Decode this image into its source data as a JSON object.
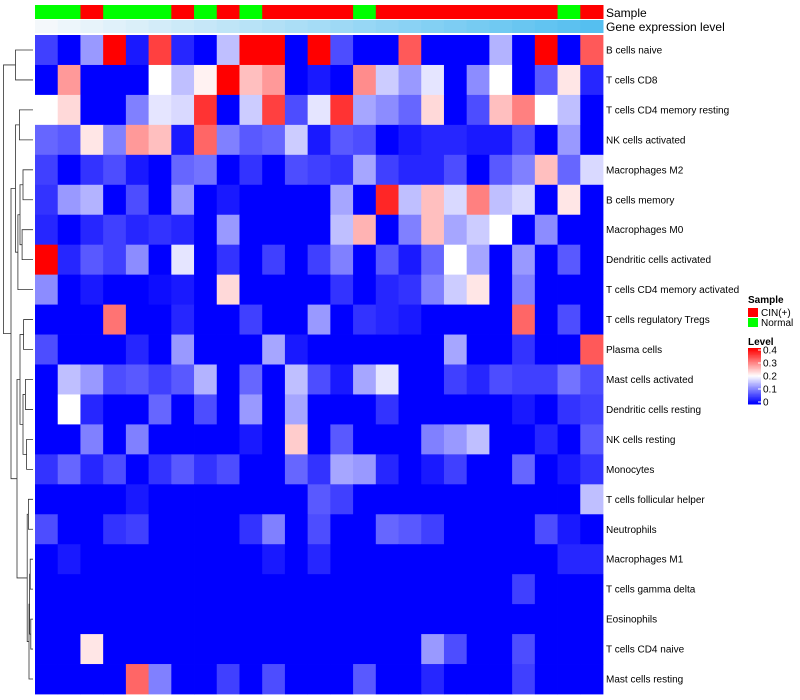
{
  "chart_data": {
    "type": "heatmap",
    "title": "",
    "annotation_rows": [
      {
        "label": "Sample",
        "values": [
          "Normal",
          "Normal",
          "CIN(+)",
          "Normal",
          "Normal",
          "Normal",
          "CIN(+)",
          "Normal",
          "CIN(+)",
          "Normal",
          "CIN(+)",
          "CIN(+)",
          "CIN(+)",
          "CIN(+)",
          "Normal",
          "CIN(+)",
          "CIN(+)",
          "CIN(+)",
          "CIN(+)",
          "CIN(+)",
          "CIN(+)",
          "CIN(+)",
          "CIN(+)",
          "Normal",
          "CIN(+)"
        ]
      },
      {
        "label": "Gene expression level",
        "gradient_from": "#f4f8fb",
        "gradient_to": "#55bff0"
      }
    ],
    "rows": [
      "B cells naive",
      "T cells CD8",
      "T cells CD4 memory resting",
      "NK cells activated",
      "Macrophages M2",
      "B cells memory",
      "Macrophages M0",
      "Dendritic cells activated",
      "T cells CD4 memory activated",
      "T cells regulatory  Tregs",
      "Plasma cells",
      "Mast cells activated",
      "Dendritic cells resting",
      "NK cells resting",
      "Monocytes",
      "T cells follicular helper",
      "Neutrophils",
      "Macrophages M1",
      "T cells gamma delta",
      "Eosinophils",
      "T cells CD4 naive",
      "Mast cells resting"
    ],
    "n_columns": 25,
    "values": [
      [
        0.05,
        0.0,
        0.12,
        0.4,
        0.02,
        0.35,
        0.03,
        0.0,
        0.15,
        0.4,
        0.4,
        0.0,
        0.4,
        0.06,
        0.0,
        0.0,
        0.33,
        0.0,
        0.0,
        0.0,
        0.14,
        0.0,
        0.4,
        0.0,
        0.33
      ],
      [
        0.0,
        0.28,
        0.0,
        0.0,
        0.0,
        0.2,
        0.15,
        0.21,
        0.4,
        0.25,
        0.28,
        0.0,
        0.02,
        0.0,
        0.29,
        0.16,
        0.12,
        0.18,
        0.0,
        0.11,
        0.2,
        0.0,
        0.07,
        0.22,
        0.03
      ],
      [
        0.2,
        0.23,
        0.0,
        0.0,
        0.1,
        0.18,
        0.17,
        0.36,
        0.0,
        0.16,
        0.35,
        0.06,
        0.18,
        0.36,
        0.13,
        0.11,
        0.08,
        0.23,
        0.0,
        0.06,
        0.25,
        0.3,
        0.2,
        0.15,
        0.0
      ],
      [
        0.08,
        0.07,
        0.22,
        0.1,
        0.28,
        0.25,
        0.02,
        0.32,
        0.1,
        0.07,
        0.08,
        0.16,
        0.02,
        0.07,
        0.06,
        0.0,
        0.02,
        0.03,
        0.03,
        0.02,
        0.02,
        0.06,
        0.0,
        0.12,
        0.0
      ],
      [
        0.05,
        0.0,
        0.04,
        0.06,
        0.02,
        0.0,
        0.08,
        0.09,
        0.0,
        0.04,
        0.0,
        0.06,
        0.05,
        0.04,
        0.13,
        0.05,
        0.03,
        0.03,
        0.06,
        0.0,
        0.07,
        0.1,
        0.25,
        0.08,
        0.17
      ],
      [
        0.04,
        0.12,
        0.14,
        0.0,
        0.06,
        0.0,
        0.12,
        0.0,
        0.02,
        0.0,
        0.0,
        0.0,
        0.0,
        0.13,
        0.0,
        0.37,
        0.15,
        0.25,
        0.17,
        0.3,
        0.15,
        0.17,
        0.0,
        0.22,
        0.0
      ],
      [
        0.03,
        0.0,
        0.03,
        0.05,
        0.03,
        0.04,
        0.03,
        0.0,
        0.12,
        0.0,
        0.0,
        0.0,
        0.0,
        0.15,
        0.26,
        0.0,
        0.1,
        0.25,
        0.13,
        0.16,
        0.2,
        0.0,
        0.11,
        0.0,
        0.0
      ],
      [
        0.4,
        0.03,
        0.07,
        0.05,
        0.11,
        0.0,
        0.18,
        0.0,
        0.04,
        0.0,
        0.05,
        0.0,
        0.05,
        0.1,
        0.0,
        0.07,
        0.02,
        0.08,
        0.2,
        0.13,
        0.0,
        0.12,
        0.0,
        0.07,
        0.0
      ],
      [
        0.11,
        0.0,
        0.02,
        0.0,
        0.0,
        0.01,
        0.02,
        0.0,
        0.23,
        0.0,
        0.0,
        0.0,
        0.0,
        0.04,
        0.0,
        0.03,
        0.04,
        0.1,
        0.16,
        0.22,
        0.0,
        0.1,
        0.0,
        0.0,
        0.0
      ],
      [
        0.0,
        0.0,
        0.0,
        0.31,
        0.0,
        0.0,
        0.03,
        0.0,
        0.0,
        0.05,
        0.0,
        0.0,
        0.12,
        0.0,
        0.04,
        0.03,
        0.02,
        0.0,
        0.0,
        0.0,
        0.0,
        0.32,
        0.0,
        0.06,
        0.0
      ],
      [
        0.06,
        0.0,
        0.0,
        0.0,
        0.03,
        0.0,
        0.12,
        0.0,
        0.0,
        0.0,
        0.13,
        0.02,
        0.0,
        0.0,
        0.0,
        0.0,
        0.0,
        0.0,
        0.13,
        0.0,
        0.0,
        0.04,
        0.0,
        0.0,
        0.33
      ],
      [
        0.0,
        0.15,
        0.12,
        0.06,
        0.07,
        0.05,
        0.07,
        0.14,
        0.0,
        0.08,
        0.0,
        0.15,
        0.06,
        0.02,
        0.13,
        0.18,
        0.0,
        0.0,
        0.05,
        0.03,
        0.06,
        0.05,
        0.05,
        0.09,
        0.06
      ],
      [
        0.0,
        0.2,
        0.03,
        0.0,
        0.0,
        0.08,
        0.0,
        0.06,
        0.0,
        0.12,
        0.0,
        0.13,
        0.0,
        0.0,
        0.0,
        0.04,
        0.0,
        0.0,
        0.0,
        0.0,
        0.0,
        0.02,
        0.0,
        0.04,
        0.05
      ],
      [
        0.0,
        0.0,
        0.1,
        0.0,
        0.1,
        0.0,
        0.0,
        0.0,
        0.0,
        0.02,
        0.0,
        0.24,
        0.0,
        0.07,
        0.0,
        0.0,
        0.0,
        0.1,
        0.12,
        0.15,
        0.0,
        0.0,
        0.03,
        0.0,
        0.07
      ],
      [
        0.04,
        0.08,
        0.03,
        0.06,
        0.0,
        0.04,
        0.07,
        0.04,
        0.06,
        0.0,
        0.0,
        0.08,
        0.04,
        0.13,
        0.12,
        0.03,
        0.0,
        0.02,
        0.05,
        0.0,
        0.0,
        0.08,
        0.0,
        0.02,
        0.04
      ],
      [
        0.0,
        0.0,
        0.0,
        0.0,
        0.02,
        0.0,
        0.0,
        0.0,
        0.0,
        0.0,
        0.0,
        0.0,
        0.07,
        0.05,
        0.0,
        0.0,
        0.0,
        0.0,
        0.0,
        0.0,
        0.0,
        0.0,
        0.0,
        0.0,
        0.15
      ],
      [
        0.06,
        0.0,
        0.0,
        0.04,
        0.05,
        0.0,
        0.0,
        0.0,
        0.0,
        0.04,
        0.1,
        0.0,
        0.06,
        0.0,
        0.0,
        0.08,
        0.07,
        0.05,
        0.0,
        0.0,
        0.0,
        0.0,
        0.06,
        0.02,
        0.0
      ],
      [
        0.0,
        0.02,
        0.0,
        0.0,
        0.0,
        0.0,
        0.0,
        0.0,
        0.0,
        0.0,
        0.02,
        0.0,
        0.03,
        0.0,
        0.0,
        0.0,
        0.0,
        0.0,
        0.0,
        0.0,
        0.0,
        0.0,
        0.0,
        0.03,
        0.03
      ],
      [
        0.0,
        0.0,
        0.0,
        0.0,
        0.0,
        0.0,
        0.0,
        0.0,
        0.0,
        0.0,
        0.0,
        0.0,
        0.0,
        0.0,
        0.0,
        0.0,
        0.0,
        0.0,
        0.0,
        0.0,
        0.0,
        0.05,
        0.0,
        0.0,
        0.0
      ],
      [
        0.0,
        0.0,
        0.0,
        0.0,
        0.0,
        0.0,
        0.0,
        0.0,
        0.0,
        0.0,
        0.0,
        0.0,
        0.0,
        0.0,
        0.0,
        0.0,
        0.0,
        0.0,
        0.0,
        0.0,
        0.0,
        0.0,
        0.0,
        0.0,
        0.0
      ],
      [
        0.0,
        0.0,
        0.22,
        0.0,
        0.0,
        0.0,
        0.0,
        0.0,
        0.0,
        0.0,
        0.0,
        0.0,
        0.0,
        0.0,
        0.0,
        0.0,
        0.0,
        0.12,
        0.06,
        0.0,
        0.0,
        0.06,
        0.0,
        0.0,
        0.0
      ],
      [
        0.0,
        0.0,
        0.0,
        0.0,
        0.32,
        0.1,
        0.0,
        0.0,
        0.05,
        0.0,
        0.06,
        0.0,
        0.0,
        0.0,
        0.07,
        0.0,
        0.0,
        0.03,
        0.0,
        0.0,
        0.0,
        0.05,
        0.0,
        0.0,
        0.0
      ]
    ],
    "color_scale": {
      "min": 0,
      "max": 0.4,
      "low": "#0000ff",
      "mid": "#ffffff",
      "high": "#ff0000",
      "midpoint": 0.2
    },
    "legend": {
      "placement": "right",
      "sample_title": "Sample",
      "sample_items": [
        {
          "label": "CIN(+)",
          "color": "#ff0000"
        },
        {
          "label": "Normal",
          "color": "#00ff00"
        }
      ],
      "level_title": "Level",
      "level_ticks": [
        "0.4",
        "0.3",
        "0.2",
        "0.1",
        "0"
      ],
      "level_tick_values": [
        0.4,
        0.3,
        0.2,
        0.1,
        0
      ]
    },
    "row_dendrogram": true
  }
}
